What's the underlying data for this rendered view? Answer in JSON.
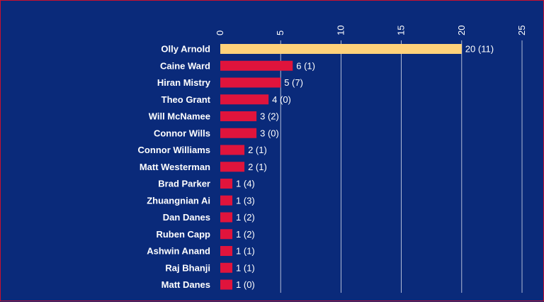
{
  "chart_data": {
    "type": "bar",
    "orientation": "horizontal",
    "categories": [
      "Olly Arnold",
      "Caine Ward",
      "Hiran Mistry",
      "Theo Grant",
      "Will McNamee",
      "Connor Wills",
      "Connor Williams",
      "Matt Westerman",
      "Brad Parker",
      "Zhuangnian Ai",
      "Dan Danes",
      "Ruben Capp",
      "Ashwin Anand",
      "Raj Bhanji",
      "Matt Danes"
    ],
    "values": [
      20,
      6,
      5,
      4,
      3,
      3,
      2,
      2,
      1,
      1,
      1,
      1,
      1,
      1,
      1
    ],
    "data_labels": [
      "20 (11)",
      "6 (1)",
      "5 (7)",
      "4 (0)",
      "3 (2)",
      "3 (0)",
      "2 (1)",
      "2 (1)",
      "1 (4)",
      "1 (3)",
      "1 (2)",
      "1 (2)",
      "1 (1)",
      "1 (1)",
      "1 (0)"
    ],
    "xlim": [
      0,
      25
    ],
    "x_ticks": [
      "0",
      "5",
      "10",
      "15",
      "20",
      "25"
    ],
    "x_axis_position": "top",
    "x_tick_rotation": "vertical",
    "grid": "vertical",
    "highlight_index": 0,
    "colors": {
      "background": "#0a2a7a",
      "border": "#c8102e",
      "bar": "#e0143c",
      "highlight_bar": "#ffd27a",
      "grid": "#ffffff",
      "text": "#ffffff"
    },
    "title": "",
    "xlabel": "",
    "ylabel": ""
  }
}
